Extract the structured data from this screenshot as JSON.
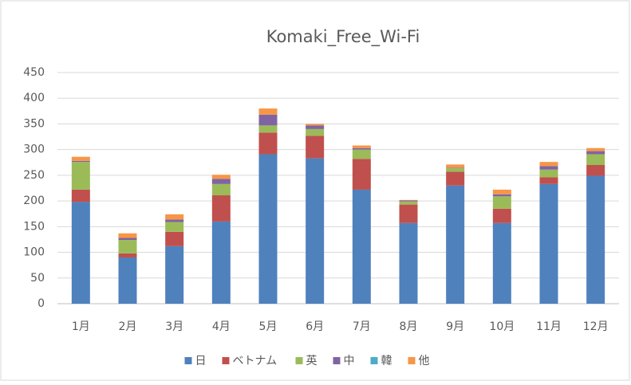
{
  "chart_data": {
    "type": "stacked_bar",
    "title": "Komaki_Free_Wi-Fi",
    "categories": [
      "1月",
      "2月",
      "3月",
      "4月",
      "5月",
      "6月",
      "7月",
      "8月",
      "9月",
      "10月",
      "11月",
      "12月"
    ],
    "series": [
      {
        "name": "日",
        "color": "#4f81bd",
        "values": [
          198,
          90,
          112,
          160,
          291,
          283,
          222,
          157,
          230,
          157,
          233,
          249
        ]
      },
      {
        "name": "ベトナム",
        "color": "#c0504d",
        "values": [
          24,
          8,
          28,
          51,
          42,
          44,
          60,
          36,
          27,
          28,
          13,
          21
        ]
      },
      {
        "name": "英",
        "color": "#9bbb59",
        "values": [
          54,
          26,
          19,
          22,
          14,
          13,
          18,
          6,
          7,
          24,
          15,
          21
        ]
      },
      {
        "name": "中",
        "color": "#8064a2",
        "values": [
          2,
          4,
          5,
          10,
          21,
          7,
          3,
          2,
          1,
          4,
          7,
          6
        ]
      },
      {
        "name": "韓",
        "color": "#4bacc6",
        "values": [
          0,
          0,
          0,
          0,
          0,
          0,
          0,
          0,
          0,
          0,
          0,
          0
        ]
      },
      {
        "name": "他",
        "color": "#f79646",
        "values": [
          8,
          9,
          10,
          8,
          12,
          3,
          5,
          1,
          6,
          9,
          8,
          6
        ]
      }
    ],
    "ylim": [
      0,
      450
    ],
    "yticks": [
      0,
      50,
      100,
      150,
      200,
      250,
      300,
      350,
      400,
      450
    ],
    "grid": true,
    "legend": "bottom"
  }
}
